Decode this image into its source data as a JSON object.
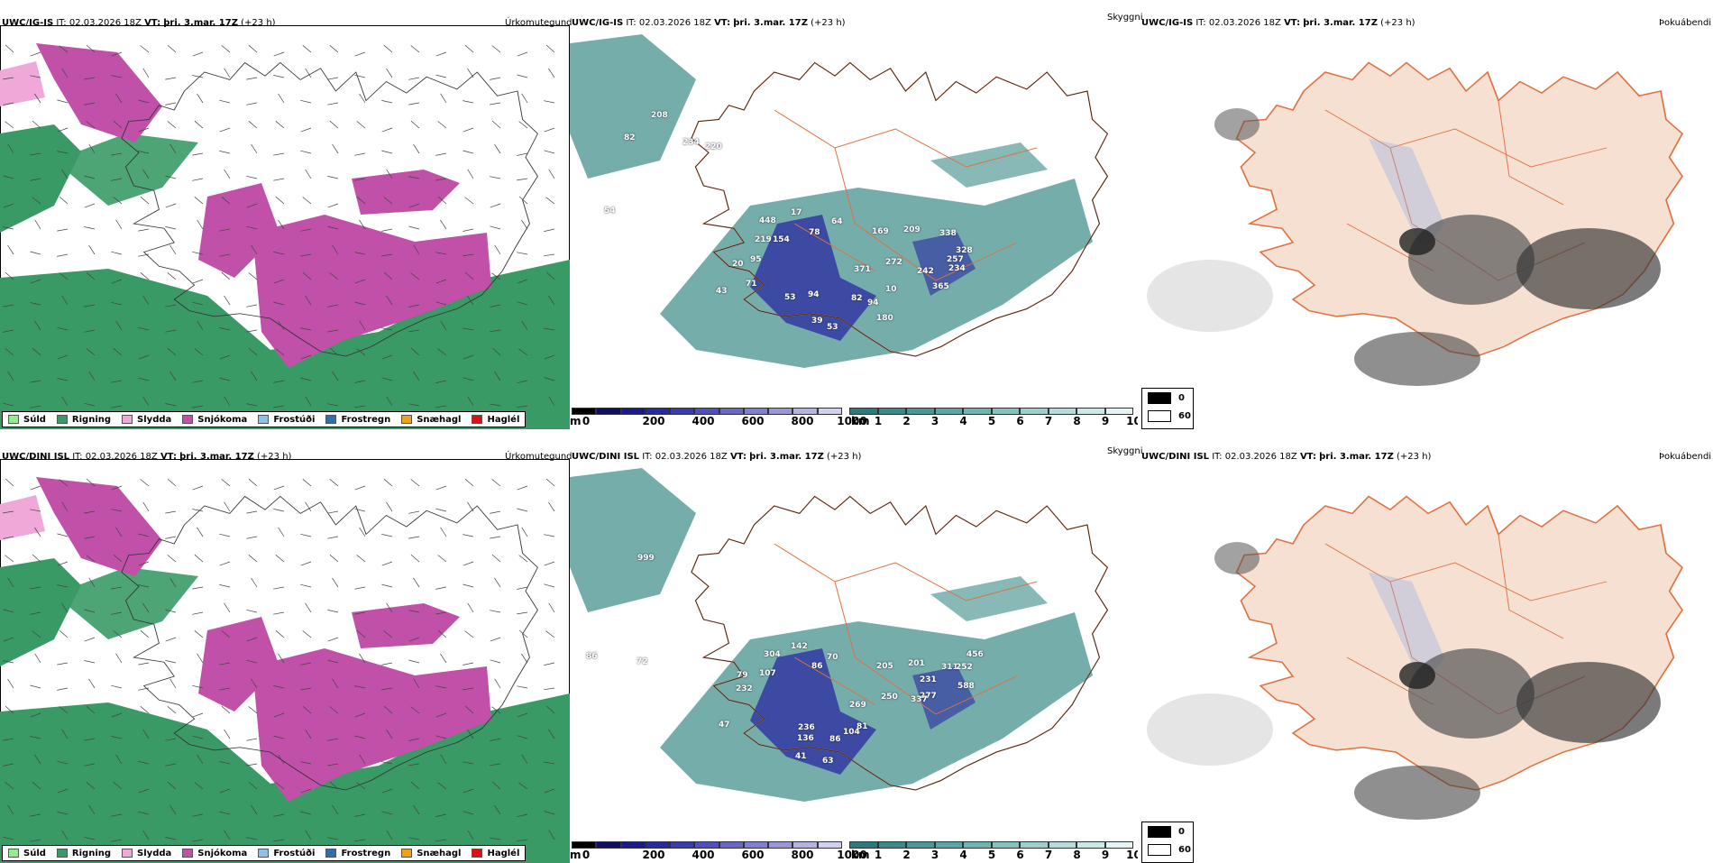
{
  "rows": [
    {
      "model": "UWC/IG-IS",
      "it_label": "IT:",
      "it_value": "02.03.2026 18Z",
      "vt_label": "VT:",
      "vt_value": "þri. 3.mar. 17Z",
      "lead": "(+23 h)",
      "precip_title": "Úrkomutegund",
      "vis_title": "Skyggni",
      "fog_title": "Þokuábendi",
      "cloud_labels": [
        "208",
        "82",
        "234",
        "220",
        "54",
        "448",
        "17",
        "64",
        "78",
        "169",
        "209",
        "338",
        "219",
        "154",
        "328",
        "20",
        "95",
        "272",
        "257",
        "234",
        "71",
        "43",
        "371",
        "242",
        "365",
        "53",
        "94",
        "82",
        "94",
        "180",
        "39",
        "53",
        "10"
      ],
      "cloud_label_pos": [
        [
          90,
          95
        ],
        [
          60,
          120
        ],
        [
          125,
          125
        ],
        [
          150,
          130
        ],
        [
          38,
          201
        ],
        [
          210,
          212
        ],
        [
          245,
          203
        ],
        [
          290,
          213
        ],
        [
          265,
          225
        ],
        [
          335,
          224
        ],
        [
          370,
          222
        ],
        [
          410,
          226
        ],
        [
          205,
          233
        ],
        [
          225,
          233
        ],
        [
          428,
          245
        ],
        [
          180,
          260
        ],
        [
          200,
          255
        ],
        [
          350,
          258
        ],
        [
          418,
          255
        ],
        [
          420,
          265
        ],
        [
          195,
          282
        ],
        [
          162,
          290
        ],
        [
          315,
          266
        ],
        [
          385,
          268
        ],
        [
          402,
          285
        ],
        [
          238,
          297
        ],
        [
          264,
          294
        ],
        [
          312,
          298
        ],
        [
          330,
          303
        ],
        [
          340,
          320
        ],
        [
          268,
          323
        ],
        [
          285,
          330
        ],
        [
          350,
          288
        ]
      ]
    },
    {
      "model": "UWC/DINI ISL",
      "it_label": "IT:",
      "it_value": "02.03.2026 18Z",
      "vt_label": "VT:",
      "vt_value": "þri. 3.mar. 17Z",
      "lead": "(+23 h)",
      "precip_title": "Úrkomutegund",
      "vis_title": "Skyggni",
      "fog_title": "Þokuábendi",
      "cloud_labels": [
        "999",
        "72",
        "86",
        "304",
        "142",
        "70",
        "86",
        "205",
        "201",
        "456",
        "311",
        "252",
        "79",
        "107",
        "231",
        "232",
        "588",
        "47",
        "269",
        "250",
        "277",
        "337",
        "236",
        "81",
        "104",
        "136",
        "86",
        "41",
        "63"
      ],
      "cloud_label_pos": [
        [
          75,
          105
        ],
        [
          74,
          220
        ],
        [
          18,
          214
        ],
        [
          215,
          212
        ],
        [
          245,
          203
        ],
        [
          285,
          215
        ],
        [
          268,
          225
        ],
        [
          340,
          225
        ],
        [
          375,
          222
        ],
        [
          440,
          212
        ],
        [
          412,
          226
        ],
        [
          428,
          226
        ],
        [
          185,
          235
        ],
        [
          210,
          233
        ],
        [
          388,
          240
        ],
        [
          184,
          250
        ],
        [
          430,
          247
        ],
        [
          165,
          290
        ],
        [
          310,
          268
        ],
        [
          345,
          259
        ],
        [
          388,
          258
        ],
        [
          378,
          262
        ],
        [
          253,
          293
        ],
        [
          318,
          292
        ],
        [
          303,
          298
        ],
        [
          252,
          305
        ],
        [
          288,
          306
        ],
        [
          250,
          325
        ],
        [
          280,
          330
        ]
      ]
    }
  ],
  "precip_legend": [
    {
      "label": "Súld",
      "color": "#90ee90"
    },
    {
      "label": "Rigning",
      "color": "#3a9a66"
    },
    {
      "label": "Slydda",
      "color": "#f0a8d8"
    },
    {
      "label": "Snjókoma",
      "color": "#c050a8"
    },
    {
      "label": "Frostúði",
      "color": "#8cc0ee"
    },
    {
      "label": "Frostregn",
      "color": "#3070b0"
    },
    {
      "label": "Snæhagl",
      "color": "#f0a020"
    },
    {
      "label": "Haglél",
      "color": "#e01010"
    }
  ],
  "cloudbase_bar": {
    "unit": "m",
    "ticks": [
      "0",
      "200",
      "400",
      "600",
      "800",
      "1000"
    ],
    "colors": [
      "#000000",
      "#101060",
      "#1a1a8c",
      "#2a2aa0",
      "#3b3bb0",
      "#5050bc",
      "#6868c4",
      "#8080cc",
      "#9898d8",
      "#b4b4e4",
      "#d0d0f0"
    ]
  },
  "visibility_bar": {
    "unit": "km",
    "ticks": [
      "1",
      "2",
      "3",
      "4",
      "5",
      "6",
      "7",
      "8",
      "9",
      "10"
    ],
    "colors": [
      "#2e7a78",
      "#3a8a86",
      "#4a9894",
      "#5aa6a2",
      "#6eb4b0",
      "#84c2be",
      "#9ccecc",
      "#b4dcda",
      "#cce8e6",
      "#e4f4f2"
    ]
  },
  "fog_legend": [
    {
      "label": "0",
      "color": "#000000"
    },
    {
      "label": "60",
      "color": "#ffffff"
    }
  ],
  "colors": {
    "land_fog": "#f5e0d2",
    "roads": "#e07040",
    "rain": "#3a9a66",
    "snow": "#c050a8",
    "vis_fill": "#3a8a86",
    "cloud_base": "#2a2aa0"
  }
}
